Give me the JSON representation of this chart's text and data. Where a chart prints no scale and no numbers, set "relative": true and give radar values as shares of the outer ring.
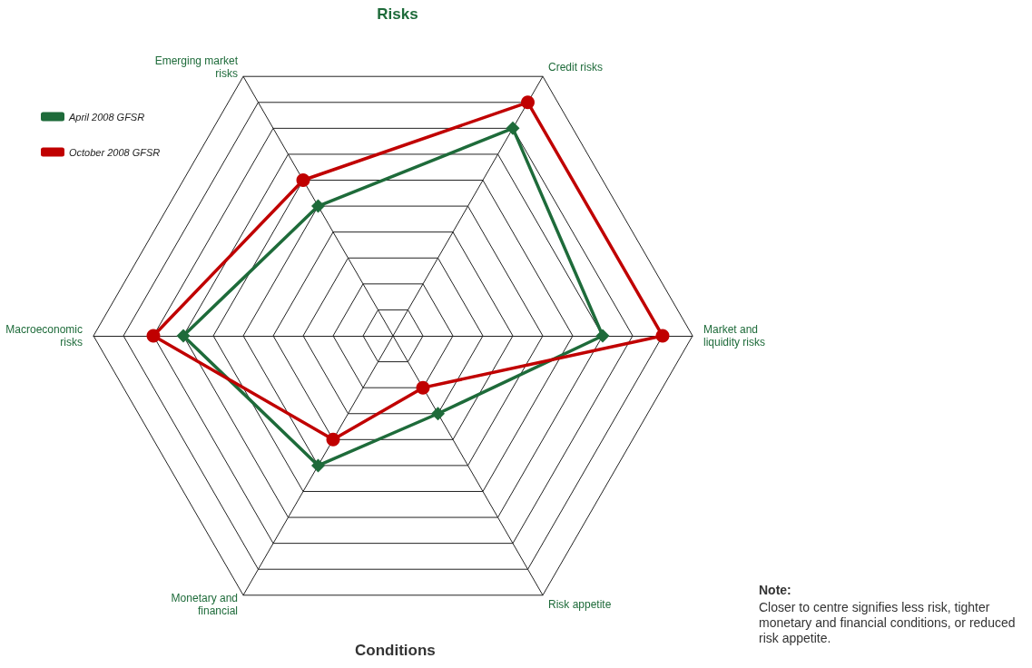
{
  "chart_data": {
    "type": "radar",
    "title": "Risks",
    "xlabel": "Conditions",
    "relative": true,
    "grid": true,
    "legend": "top left",
    "line_style": "solid",
    "categories": [
      "Credit risks",
      "Market and liquidity risks",
      "Risk appetite",
      "Monetary and financial",
      "Macroeconomic risks",
      "Emerging market risks"
    ],
    "series": [
      {
        "name": "April 2008 GFSR",
        "color": "#1e6b3a",
        "marker": "diamond",
        "values": [
          0.8,
          0.7,
          0.3,
          0.5,
          0.7,
          0.5
        ]
      },
      {
        "name": "October 2008 GFSR",
        "color": "#c00000",
        "marker": "circle",
        "values": [
          0.9,
          0.9,
          0.2,
          0.4,
          0.8,
          0.6
        ]
      }
    ],
    "annotations": [
      "Note:",
      "Closer to centre signifies less risk, tighter monetary and financial conditions, or reduced risk appetite."
    ]
  }
}
